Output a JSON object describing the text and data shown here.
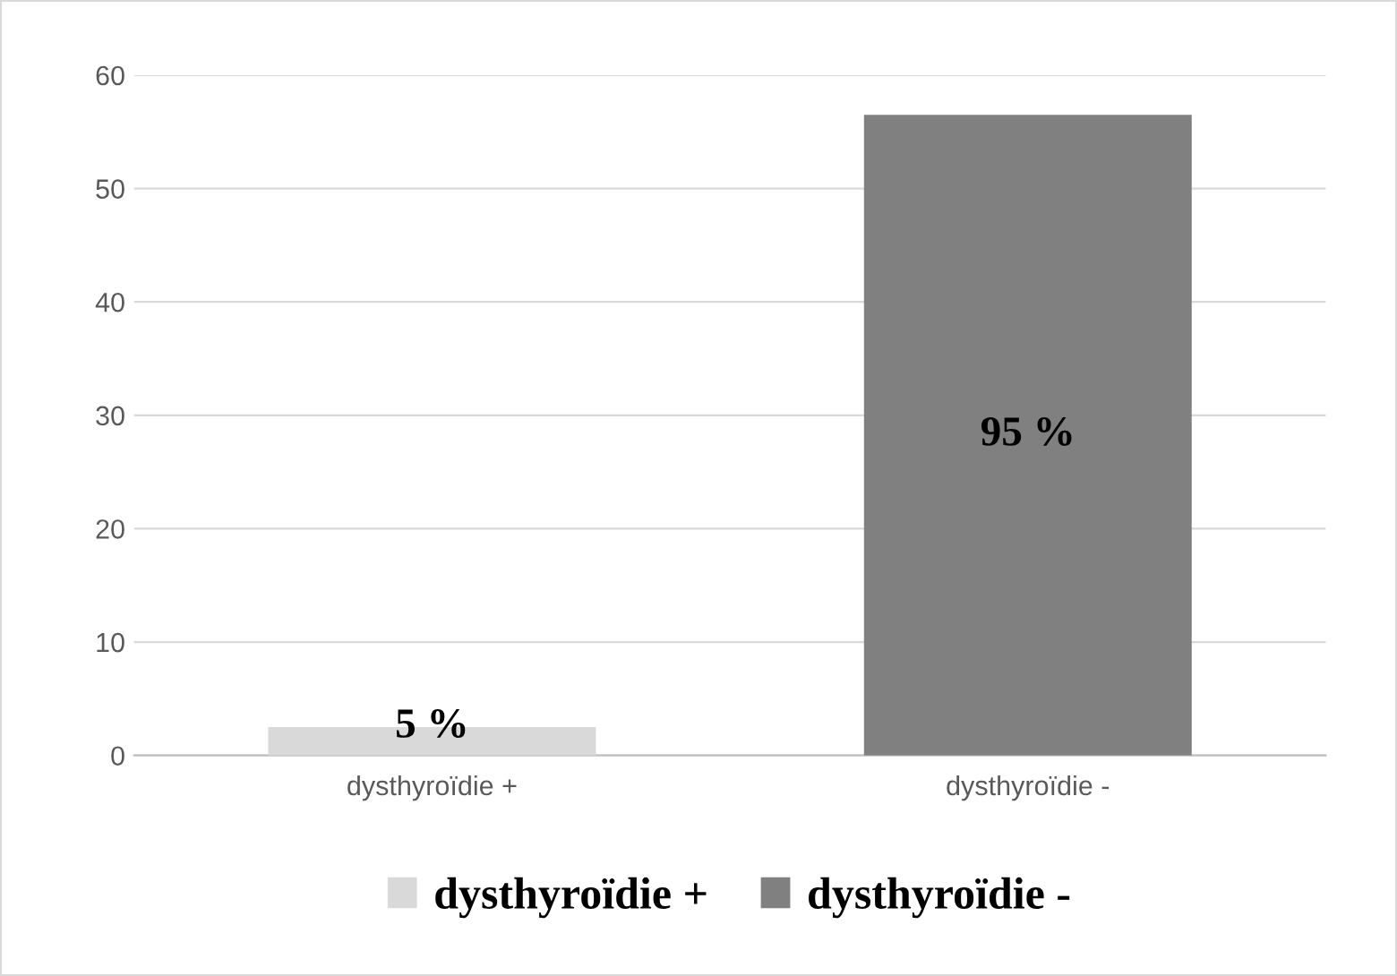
{
  "chart_data": {
    "type": "bar",
    "categories": [
      "dysthyroïdie +",
      "dysthyroïdie -"
    ],
    "series": [
      {
        "name": "dysthyroïdie +",
        "color": "#d9d9d9",
        "values": [
          2.5,
          null
        ]
      },
      {
        "name": "dysthyroïdie -",
        "color": "#808080",
        "values": [
          null,
          56.5
        ]
      }
    ],
    "annotations": [
      {
        "text": "5 %",
        "x": "dysthyroïdie +",
        "y": 2.5
      },
      "95 %"
    ],
    "ylim": [
      0,
      60
    ],
    "yticks": [
      0,
      10,
      20,
      30,
      40,
      50,
      60
    ],
    "grid": "y",
    "legend": "bottom"
  }
}
